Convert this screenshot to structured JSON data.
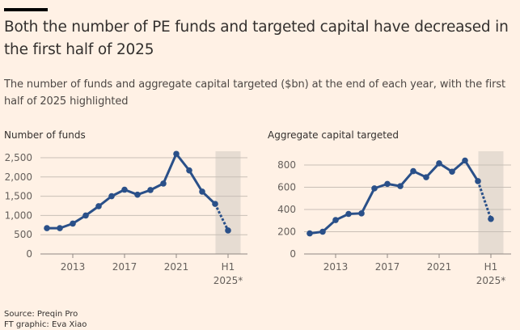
{
  "header": {
    "title": "Both the number of PE funds and targeted capital have decreased in the first half of 2025",
    "subtitle": "The number of funds and aggregate capital targeted ($bn) at the end of each year, with the first half of 2025 highlighted"
  },
  "colors": {
    "background": "#fff1e5",
    "line": "#2a5089",
    "highlight_band": "#e6dcd2",
    "gridline": "#c8bfb6",
    "axis": "#8f8782"
  },
  "footer": {
    "source": "Source: Preqin Pro",
    "credit": "FT graphic: Eva Xiao"
  },
  "chart_data": [
    {
      "type": "line",
      "title": "Number of funds",
      "xlabel": "",
      "ylabel": "",
      "x": [
        "2011",
        "2012",
        "2013",
        "2014",
        "2015",
        "2016",
        "2017",
        "2018",
        "2019",
        "2020",
        "2021",
        "2022",
        "2023",
        "2024",
        "H1 2025*"
      ],
      "x_ticks": [
        {
          "label": "2013",
          "label2": ""
        },
        {
          "label": "2017",
          "label2": ""
        },
        {
          "label": "2021",
          "label2": ""
        },
        {
          "label": "H1",
          "label2": "2025*"
        }
      ],
      "x_tick_index": [
        2,
        6,
        10,
        14
      ],
      "series": [
        {
          "name": "Number of funds",
          "values": [
            670,
            670,
            790,
            1000,
            1240,
            1500,
            1670,
            1540,
            1660,
            1830,
            2600,
            2170,
            1620,
            1300,
            610
          ]
        }
      ],
      "dashed_last_segment": true,
      "highlight": "H1 2025*",
      "y_ticks": [
        0,
        500,
        1000,
        1500,
        2000,
        2500
      ],
      "y_tick_labels": [
        "0",
        "500",
        "1,000",
        "1,500",
        "2,000",
        "2,500"
      ],
      "ylim": [
        0,
        2500
      ],
      "grid": true
    },
    {
      "type": "line",
      "title": "Aggregate capital targeted",
      "xlabel": "",
      "ylabel": "",
      "x": [
        "2011",
        "2012",
        "2013",
        "2014",
        "2015",
        "2016",
        "2017",
        "2018",
        "2019",
        "2020",
        "2021",
        "2022",
        "2023",
        "2024",
        "H1 2025*"
      ],
      "x_ticks": [
        {
          "label": "2013",
          "label2": ""
        },
        {
          "label": "2017",
          "label2": ""
        },
        {
          "label": "2021",
          "label2": ""
        },
        {
          "label": "H1",
          "label2": "2025*"
        }
      ],
      "x_tick_index": [
        2,
        6,
        10,
        14
      ],
      "series": [
        {
          "name": "Aggregate capital targeted ($bn)",
          "values": [
            185,
            200,
            305,
            360,
            365,
            590,
            630,
            610,
            745,
            690,
            815,
            740,
            840,
            655,
            315
          ]
        }
      ],
      "dashed_last_segment": true,
      "highlight": "H1 2025*",
      "y_ticks": [
        0,
        200,
        400,
        600,
        800
      ],
      "y_tick_labels": [
        "0",
        "200",
        "400",
        "600",
        "800"
      ],
      "ylim": [
        0,
        800
      ],
      "grid": true
    }
  ]
}
